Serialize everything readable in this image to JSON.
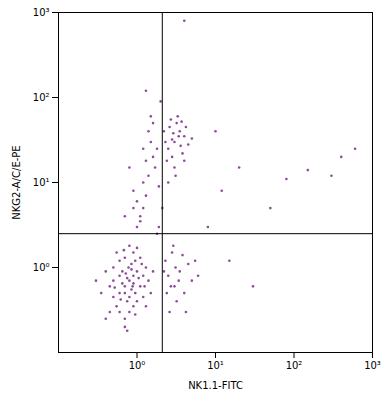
{
  "chart_data": {
    "type": "scatter",
    "x_label": "NK1.1-FITC",
    "y_label": "NKG2-A/C/E-PE",
    "log": true,
    "color": "#7a2a8c",
    "marker": "dot",
    "xlim": [
      0.1,
      1000
    ],
    "ylim": [
      0.1,
      1000
    ],
    "xticks": [
      {
        "value": 1,
        "label": "10⁰"
      },
      {
        "value": 10,
        "label": "10¹"
      },
      {
        "value": 100,
        "label": "10²"
      },
      {
        "value": 1000,
        "label": "10³"
      }
    ],
    "yticks": [
      {
        "value": 1,
        "label": "10⁰"
      },
      {
        "value": 10,
        "label": "10¹"
      },
      {
        "value": 100,
        "label": "10²"
      },
      {
        "value": 1000,
        "label": "10³"
      }
    ],
    "quadrant": {
      "x": 2.1,
      "y": 2.5
    },
    "x": [
      0.8,
      0.7,
      0.9,
      0.6,
      1.0,
      0.75,
      0.85,
      0.5,
      1.1,
      0.65,
      0.95,
      0.7,
      0.55,
      1.2,
      0.8,
      0.45,
      1.3,
      0.9,
      0.6,
      0.7,
      1.0,
      0.4,
      0.85,
      0.75,
      1.4,
      0.5,
      0.95,
      0.6,
      1.1,
      0.8,
      0.35,
      0.7,
      1.5,
      0.55,
      0.9,
      1.2,
      0.65,
      0.85,
      1.0,
      0.45,
      0.3,
      1.6,
      0.75,
      0.6,
      0.9,
      1.3,
      0.5,
      0.7,
      1.05,
      0.8,
      0.4,
      0.95,
      1.15,
      0.62,
      0.78,
      0.88,
      0.72,
      1.25,
      0.52,
      0.68,
      2.5,
      3,
      2.3,
      3.5,
      4,
      2.8,
      3.2,
      5,
      2.4,
      4.5,
      3.8,
      2.6,
      6,
      3.1,
      2.2,
      4.2,
      2.9,
      5.5,
      3.4,
      2.7,
      3,
      2.5,
      3.5,
      2.8,
      4,
      3.2,
      2.3,
      3.8,
      2.6,
      4.5,
      3,
      3.3,
      2.4,
      4.2,
      2.9,
      3.6,
      2.2,
      3.1,
      5,
      2.7,
      3.4,
      4,
      2.5,
      3.7,
      2.8,
      1.0,
      1.2,
      0.9,
      1.4,
      1.1,
      1.6,
      1.3,
      0.8,
      1.5,
      1.2,
      1.8,
      1.0,
      0.7,
      1.4,
      1.7,
      1.1,
      1.3,
      0.9,
      1.9,
      1.6,
      1.2,
      1.5,
      1.9,
      2.1,
      1.8,
      4,
      20,
      150,
      300,
      400,
      80,
      12,
      8,
      15,
      30,
      600,
      1.3,
      2,
      50,
      10
    ],
    "values": [
      0.7,
      0.6,
      0.8,
      0.5,
      0.9,
      0.4,
      1.1,
      0.7,
      0.6,
      0.9,
      0.5,
      1.3,
      0.35,
      0.8,
      0.3,
      0.6,
      1.0,
      1.5,
      1.2,
      0.25,
      0.4,
      0.9,
      0.55,
      0.75,
      0.7,
      0.45,
      1.2,
      0.3,
      1.3,
      1.8,
      0.5,
      0.2,
      0.5,
      1.5,
      0.35,
      0.45,
      0.65,
      0.95,
      1.7,
      0.3,
      0.7,
      0.9,
      0.18,
      0.8,
      0.65,
      0.35,
      1.0,
      0.5,
      0.75,
      0.45,
      0.25,
      0.28,
      1.1,
      0.42,
      1.0,
      0.6,
      0.85,
      0.6,
      0.58,
      1.6,
      0.8,
      0.6,
      1.2,
      0.9,
      0.5,
      1.5,
      0.4,
      0.7,
      0.5,
      1.1,
      1.4,
      0.3,
      0.8,
      1.0,
      0.9,
      0.3,
      1.8,
      1.2,
      0.7,
      0.6,
      30,
      25,
      40,
      20,
      35,
      50,
      30,
      22,
      45,
      28,
      15,
      60,
      18,
      45,
      38,
      27,
      40,
      12,
      33,
      55,
      35,
      18,
      10,
      52,
      32,
      3,
      5,
      8,
      12,
      4,
      20,
      7,
      15,
      30,
      10,
      25,
      6,
      4,
      40,
      15,
      3.5,
      18,
      5,
      9,
      50,
      25,
      60,
      3,
      5,
      2.5,
      800,
      15,
      14,
      12,
      20,
      11,
      8,
      3,
      1.2,
      0.6,
      25,
      120,
      90,
      5,
      40
    ]
  }
}
